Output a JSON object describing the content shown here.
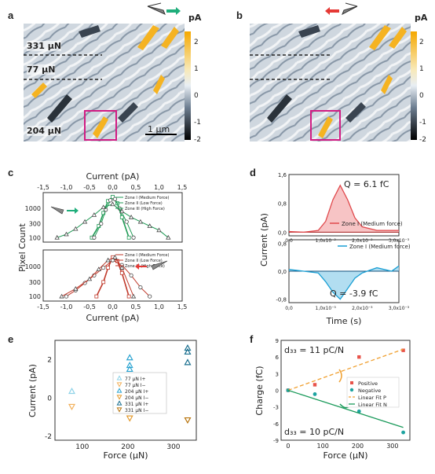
{
  "panels": {
    "a": {
      "label": "a",
      "forces": [
        "331 μN",
        "77 μN",
        "204 μN"
      ],
      "scalebar": "1 μm"
    },
    "b": {
      "label": "b"
    },
    "colorbar": {
      "unit": "pA",
      "ticks": [
        "2",
        "1",
        "0",
        "-1",
        "-2"
      ]
    },
    "c": {
      "label": "c"
    },
    "d": {
      "label": "d"
    },
    "e": {
      "label": "e"
    },
    "f": {
      "label": "f"
    }
  },
  "chart_data": [
    {
      "id": "c",
      "type": "line",
      "xlabel": "Current (pA)",
      "ylabel": "Pixel Count",
      "xlim": [
        -1.5,
        1.5
      ],
      "xticks": [
        "-1,5",
        "-1,0",
        "-0,5",
        "0,0",
        "0,5",
        "1,0",
        "1,5"
      ],
      "yticks": [
        "1000",
        "300",
        "100"
      ],
      "top_title": "Current (pA)",
      "subplots": [
        {
          "legend": [
            "Zone I (Medium Force)",
            "Zone II (Low Force)",
            "Zone III (High Force)"
          ],
          "series": [
            {
              "name": "Zone I (Medium Force)",
              "x": [
                -0.45,
                -0.3,
                -0.2,
                -0.1,
                0.0,
                0.1,
                0.2,
                0.35
              ],
              "y": [
                100,
                250,
                700,
                1800,
                2500,
                1500,
                500,
                100
              ]
            },
            {
              "name": "Zone II (Low Force)",
              "x": [
                -0.4,
                -0.25,
                -0.15,
                -0.05,
                0.05,
                0.15,
                0.3,
                0.45
              ],
              "y": [
                100,
                300,
                900,
                1900,
                2100,
                1000,
                350,
                100
              ]
            },
            {
              "name": "Zone III (High Force)",
              "x": [
                -1.2,
                -1.0,
                -0.8,
                -0.6,
                -0.4,
                -0.2,
                0.0,
                0.2,
                0.4,
                0.6,
                0.8,
                1.0,
                1.2
              ],
              "y": [
                100,
                130,
                200,
                350,
                600,
                1100,
                1400,
                800,
                500,
                350,
                250,
                180,
                100
              ]
            }
          ]
        },
        {
          "legend": [
            "Zone I (Medium Force)",
            "Zone II (Low Force)",
            "Zone III (High Force)"
          ],
          "series": [
            {
              "name": "Zone I (Medium Force)",
              "x": [
                -0.35,
                -0.2,
                -0.1,
                0.0,
                0.1,
                0.2,
                0.35
              ],
              "y": [
                100,
                300,
                900,
                2000,
                1500,
                600,
                100
              ]
            },
            {
              "name": "Zone II (Low Force)",
              "x": [
                -1.0,
                -0.8,
                -0.6,
                -0.4,
                -0.2,
                0.0,
                0.2,
                0.4,
                0.6,
                0.8
              ],
              "y": [
                100,
                160,
                280,
                500,
                900,
                1600,
                1100,
                500,
                200,
                100
              ]
            },
            {
              "name": "Zone III (High Force)",
              "x": [
                -1.1,
                -0.8,
                -0.5,
                -0.3,
                -0.1,
                0.05,
                0.2,
                0.45
              ],
              "y": [
                100,
                180,
                380,
                800,
                1600,
                2000,
                900,
                100
              ]
            }
          ]
        }
      ]
    },
    {
      "id": "d",
      "type": "line",
      "xlabel": "Time (s)",
      "ylabel": "Current (pA)",
      "subplots": [
        {
          "annotation": "Q = 6.1 fC",
          "legend": [
            "Zone I (Medium force)"
          ],
          "xlim": [
            0,
            0.003
          ],
          "xticks": [
            "0,0",
            "1,0x10⁻³",
            "2,0x10⁻³",
            "3,0x10⁻³"
          ],
          "ylim": [
            -0.1,
            1.6
          ],
          "yticks": [
            "1,6",
            "0,8",
            "0,0"
          ],
          "series": [
            {
              "name": "Zone I (Medium force)",
              "x": [
                0,
                0.0004,
                0.0008,
                0.001,
                0.0012,
                0.0014,
                0.0016,
                0.0018,
                0.002,
                0.0024,
                0.003
              ],
              "y": [
                0.02,
                0.0,
                0.05,
                0.3,
                0.9,
                1.3,
                0.9,
                0.4,
                0.15,
                0.05,
                0.05
              ]
            }
          ]
        },
        {
          "annotation": "Q = -3.9 fC",
          "legend": [
            "Zone I (Medium force)"
          ],
          "xlim": [
            0,
            0.003
          ],
          "xticks": [
            "0,0",
            "1,0x10⁻³",
            "2,0x10⁻³",
            "3,0x10⁻³"
          ],
          "ylim": [
            -0.9,
            0.9
          ],
          "yticks": [
            "0,8",
            "0,0",
            "-0,8"
          ],
          "series": [
            {
              "name": "Zone I (Medium force)",
              "x": [
                0,
                0.0004,
                0.0008,
                0.001,
                0.0012,
                0.0014,
                0.0016,
                0.0018,
                0.002,
                0.0024,
                0.0028,
                0.003
              ],
              "y": [
                0.05,
                0.0,
                -0.05,
                -0.3,
                -0.6,
                -0.8,
                -0.5,
                -0.2,
                -0.05,
                0.1,
                0.0,
                0.15
              ]
            }
          ]
        }
      ]
    },
    {
      "id": "e",
      "type": "scatter",
      "xlabel": "Force (μN)",
      "ylabel": "Current (pA)",
      "xlim": [
        40,
        350
      ],
      "ylim": [
        -2.2,
        3.0
      ],
      "xticks": [
        100,
        200,
        300
      ],
      "yticks": [
        -2,
        0,
        2
      ],
      "legend": [
        "77 μN I+",
        "77 μN I−",
        "204 μN I+",
        "204 μN I−",
        "331 μN I+",
        "331 μN I−"
      ],
      "series": [
        {
          "name": "77 μN I+",
          "color": "#8fd3e8",
          "marker": "up",
          "x": [
            77
          ],
          "y": [
            0.35
          ]
        },
        {
          "name": "77 μN I−",
          "color": "#f2b05a",
          "marker": "down",
          "x": [
            77
          ],
          "y": [
            -0.45
          ]
        },
        {
          "name": "204 μN I+",
          "color": "#29a3d1",
          "marker": "up",
          "x": [
            204,
            204,
            204
          ],
          "y": [
            2.1,
            1.7,
            1.5
          ]
        },
        {
          "name": "204 μN I−",
          "color": "#e39a2d",
          "marker": "down",
          "x": [
            204
          ],
          "y": [
            -1.05
          ]
        },
        {
          "name": "331 μN I+",
          "color": "#1a6f8f",
          "marker": "up",
          "x": [
            331,
            331,
            331
          ],
          "y": [
            2.6,
            2.4,
            1.85
          ]
        },
        {
          "name": "331 μN I−",
          "color": "#b8740c",
          "marker": "down",
          "x": [
            331
          ],
          "y": [
            -1.15
          ]
        }
      ]
    },
    {
      "id": "f",
      "type": "scatter",
      "xlabel": "Force (μN)",
      "ylabel": "Charge (fC)",
      "xlim": [
        -20,
        350
      ],
      "ylim": [
        -9,
        9
      ],
      "xticks": [
        0,
        100,
        200,
        300
      ],
      "yticks": [
        -9,
        -6,
        -3,
        0,
        3,
        6,
        9
      ],
      "annotation_top": "d₃₃ = 11 pC/N",
      "annotation_bottom": "d₃₃ = 10 pC/N",
      "legend": [
        "Positive",
        "Negative",
        "Linear Fit P",
        "Linear Fit N"
      ],
      "series": [
        {
          "name": "Positive",
          "color": "#e8534a",
          "marker": "square",
          "x": [
            0,
            77,
            204,
            331
          ],
          "y": [
            0,
            1,
            6,
            7.2
          ]
        },
        {
          "name": "Negative",
          "color": "#1da3a0",
          "marker": "circle",
          "x": [
            0,
            77,
            204,
            331
          ],
          "y": [
            0,
            -0.7,
            -3.8,
            -7.6
          ]
        },
        {
          "name": "Linear Fit P",
          "color": "#f0a030",
          "line": "dashed",
          "x": [
            0,
            331
          ],
          "y": [
            0,
            7.4
          ]
        },
        {
          "name": "Linear Fit N",
          "color": "#1a9a5a",
          "line": "solid",
          "x": [
            0,
            331
          ],
          "y": [
            0,
            -6.7
          ]
        }
      ]
    }
  ]
}
